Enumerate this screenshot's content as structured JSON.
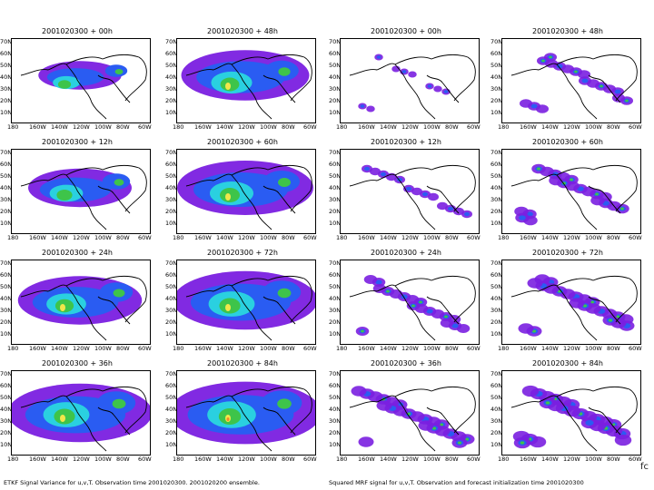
{
  "left_caption": "ETKF Signal Variance for u,v,T.  Observation time 2001020300.  2001020200 ensemble.",
  "right_caption": "Squared MRF signal for u,v,T.  Observation and forecast initialization time 2001020300",
  "corner_label": "fc",
  "lat_labels": [
    "70N",
    "60N",
    "50N",
    "40N",
    "30N",
    "20N",
    "10N"
  ],
  "lon_labels": [
    "180",
    "160W",
    "140W",
    "120W",
    "100W",
    "80W",
    "60W"
  ],
  "columns": [
    {
      "titles": [
        "2001020300 + 00h",
        "2001020300 + 12h",
        "2001020300 + 24h",
        "2001020300 + 36h"
      ]
    },
    {
      "titles": [
        "2001020300 + 48h",
        "2001020300 + 60h",
        "2001020300 + 72h",
        "2001020300 + 84h"
      ]
    },
    {
      "titles": [
        "2001020300 + 00h",
        "2001020300 + 12h",
        "2001020300 + 24h",
        "2001020300 + 36h"
      ]
    },
    {
      "titles": [
        "2001020300 + 48h",
        "2001020300 + 60h",
        "2001020300 + 72h",
        "2001020300 + 84h"
      ]
    }
  ],
  "colors": {
    "purple": "#7a1fe0",
    "blue": "#2a5cf2",
    "cyan": "#2ad0e0",
    "green": "#3ec44a",
    "yellow": "#f2e64a",
    "orange": "#f28a2a"
  }
}
